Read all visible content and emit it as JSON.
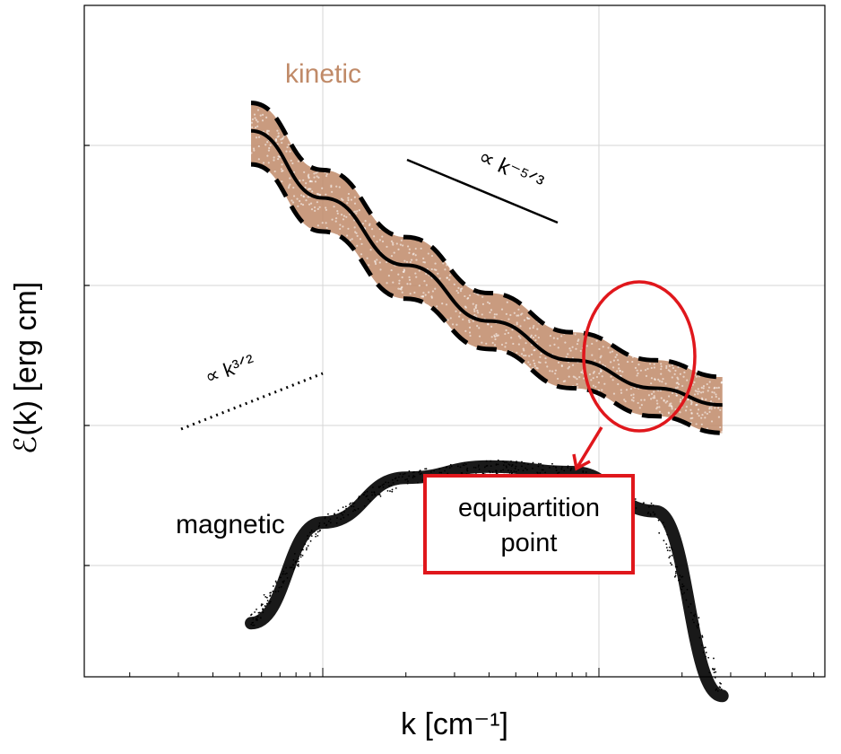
{
  "chart_data": {
    "type": "line",
    "xlabel": "k [cm⁻¹]",
    "ylabel": "ℰ(k) [erg cm]",
    "xscale": "log",
    "yscale": "log",
    "grid": true,
    "x_decades_shown": 3,
    "series": [
      {
        "name": "kinetic",
        "color": "#c08a68",
        "x": [
          0.055,
          0.1,
          0.2,
          0.4,
          0.8,
          1.6,
          2.8
        ],
        "y": [
          5.2,
          4.6,
          4.0,
          3.5,
          3.15,
          2.9,
          2.75
        ],
        "band_upper": [
          5.45,
          4.85,
          4.25,
          3.75,
          3.4,
          3.15,
          3.0
        ],
        "band_lower": [
          4.9,
          4.3,
          3.7,
          3.25,
          2.9,
          2.65,
          2.5
        ]
      },
      {
        "name": "magnetic",
        "color": "#000000",
        "x": [
          0.055,
          0.1,
          0.2,
          0.4,
          0.8,
          1.6,
          2.8
        ],
        "y": [
          0.8,
          1.7,
          2.1,
          2.2,
          2.15,
          1.8,
          0.15
        ]
      }
    ],
    "reference_lines": [
      {
        "label": "∝ k⁻⁵ᐟ³",
        "style": "solid"
      },
      {
        "label": "∝ k³ᐟ²",
        "style": "dotted"
      }
    ],
    "annotations": [
      {
        "text_line1": "equipartition",
        "text_line2": "point",
        "color": "#e0171c"
      }
    ]
  }
}
